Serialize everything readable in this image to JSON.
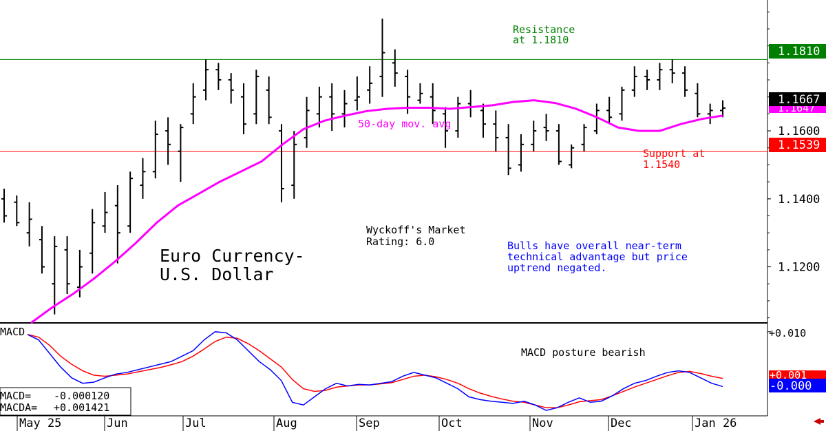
{
  "chart_data": {
    "type": "ohlc",
    "title_lines": [
      "Euro Currency-",
      "U.S. Dollar"
    ],
    "rating_lines": [
      "Wyckoff's Market",
      "Rating: 6.0"
    ],
    "commentary_lines": [
      "Bulls have overall near-term",
      "technical advantage but price",
      "uptrend negated."
    ],
    "moving_average_label": "50-day mov. avg",
    "resistance": {
      "value": 1.181,
      "label_lines": [
        "Resistance",
        "at 1.1810"
      ],
      "tag": "1.1810",
      "color": "#008000"
    },
    "support": {
      "value": 1.1539,
      "label_lines": [
        "Support at",
        "1.1540"
      ],
      "tag": "1.1539",
      "color": "#ff0000"
    },
    "last_price": {
      "value": 1.1667,
      "tag": "1.1667"
    },
    "ma_last": {
      "value": 1.1647,
      "tag": "1.1647"
    },
    "price_axis_ticks": [
      "1.1600",
      "1.1400",
      "1.1200"
    ],
    "price_axis_values": [
      1.16,
      1.14,
      1.12
    ],
    "ylim": [
      1.1035,
      1.1985
    ],
    "months": [
      "May 25",
      "Jun",
      "Jul",
      "Aug",
      "Sep",
      "Oct",
      "Nov",
      "Dec",
      "Jan 26"
    ],
    "macd": {
      "label": "MACD",
      "posture_label": "MACD posture bearish",
      "axis_tick": "+0.010",
      "ylim": [
        -0.0055,
        0.0115
      ],
      "macd_value_text": "-0.000120",
      "macda_value_text": "+0.001421",
      "macd_readout_label": "MACD=",
      "macda_readout_label": "MACDA=",
      "macd_tag": "-0.000",
      "macda_tag": "+0.001",
      "macd_values": [
        0.0095,
        0.0085,
        0.006,
        0.0035,
        0.0015,
        0.0005,
        0.0007,
        0.0015,
        0.0022,
        0.0025,
        0.003,
        0.0035,
        0.004,
        0.0045,
        0.0055,
        0.0065,
        0.0085,
        0.01,
        0.0098,
        0.0085,
        0.0065,
        0.0045,
        0.003,
        0.001,
        -0.003,
        -0.0035,
        -0.002,
        -0.0005,
        0.0005,
        0.0,
        0.0003,
        0.0002,
        0.0005,
        0.0008,
        0.0018,
        0.0025,
        0.002,
        0.0015,
        0.0005,
        -0.0005,
        -0.002,
        -0.0025,
        -0.0028,
        -0.003,
        -0.0032,
        -0.0028,
        -0.0035,
        -0.0045,
        -0.004,
        -0.003,
        -0.0022,
        -0.003,
        -0.0028,
        -0.0018,
        -0.0005,
        0.0005,
        0.001,
        0.0018,
        0.0025,
        0.0028,
        0.0025,
        0.0015,
        0.0005,
        -0.0001
      ],
      "macda_values": [
        0.0095,
        0.009,
        0.0075,
        0.0055,
        0.004,
        0.0028,
        0.002,
        0.0018,
        0.002,
        0.0022,
        0.0026,
        0.003,
        0.0034,
        0.0039,
        0.0045,
        0.0055,
        0.0068,
        0.0082,
        0.009,
        0.0088,
        0.0078,
        0.0065,
        0.005,
        0.0035,
        0.0012,
        -0.0005,
        -0.001,
        -0.0008,
        -0.0002,
        0.0,
        0.0002,
        0.0002,
        0.0004,
        0.0006,
        0.0012,
        0.0018,
        0.002,
        0.0017,
        0.0012,
        0.0005,
        -0.0005,
        -0.0013,
        -0.0019,
        -0.0024,
        -0.0028,
        -0.003,
        -0.0035,
        -0.004,
        -0.004,
        -0.0035,
        -0.0029,
        -0.0027,
        -0.0025,
        -0.0018,
        -0.001,
        -0.0002,
        0.0005,
        0.0012,
        0.0019,
        0.0025,
        0.0027,
        0.0023,
        0.0018,
        0.0014
      ]
    },
    "ma_values": [
      1.1035,
      1.108,
      1.112,
      1.1165,
      1.1215,
      1.127,
      1.133,
      1.138,
      1.1415,
      1.145,
      1.148,
      1.151,
      1.156,
      1.1605,
      1.163,
      1.1645,
      1.1658,
      1.1665,
      1.1668,
      1.1668,
      1.1665,
      1.167,
      1.1675,
      1.1685,
      1.169,
      1.1682,
      1.1665,
      1.164,
      1.161,
      1.16,
      1.16,
      1.162,
      1.1635,
      1.1645
    ],
    "ohlc": [
      [
        1.14,
        1.143,
        1.133,
        1.135
      ],
      [
        1.139,
        1.141,
        1.132,
        1.133
      ],
      [
        1.13,
        1.139,
        1.126,
        1.134
      ],
      [
        1.128,
        1.132,
        1.118,
        1.12
      ],
      [
        1.115,
        1.129,
        1.106,
        1.126
      ],
      [
        1.125,
        1.129,
        1.112,
        1.115
      ],
      [
        1.114,
        1.125,
        1.111,
        1.12
      ],
      [
        1.124,
        1.137,
        1.118,
        1.133
      ],
      [
        1.132,
        1.142,
        1.13,
        1.136
      ],
      [
        1.138,
        1.144,
        1.121,
        1.13
      ],
      [
        1.132,
        1.148,
        1.13,
        1.146
      ],
      [
        1.144,
        1.152,
        1.14,
        1.148
      ],
      [
        1.148,
        1.163,
        1.146,
        1.159
      ],
      [
        1.16,
        1.164,
        1.15,
        1.156
      ],
      [
        1.154,
        1.162,
        1.145,
        1.161
      ],
      [
        1.165,
        1.174,
        1.162,
        1.17
      ],
      [
        1.172,
        1.181,
        1.169,
        1.178
      ],
      [
        1.178,
        1.18,
        1.172,
        1.175
      ],
      [
        1.175,
        1.177,
        1.168,
        1.172
      ],
      [
        1.17,
        1.174,
        1.159,
        1.162
      ],
      [
        1.165,
        1.178,
        1.162,
        1.176
      ],
      [
        1.172,
        1.176,
        1.162,
        1.164
      ],
      [
        1.16,
        1.162,
        1.139,
        1.143
      ],
      [
        1.144,
        1.16,
        1.14,
        1.156
      ],
      [
        1.158,
        1.17,
        1.155,
        1.166
      ],
      [
        1.165,
        1.173,
        1.161,
        1.17
      ],
      [
        1.17,
        1.174,
        1.16,
        1.165
      ],
      [
        1.165,
        1.172,
        1.161,
        1.168
      ],
      [
        1.169,
        1.176,
        1.166,
        1.17
      ],
      [
        1.172,
        1.179,
        1.168,
        1.174
      ],
      [
        1.176,
        1.193,
        1.17,
        1.183
      ],
      [
        1.18,
        1.184,
        1.173,
        1.177
      ],
      [
        1.176,
        1.178,
        1.165,
        1.17
      ],
      [
        1.169,
        1.174,
        1.168,
        1.171
      ],
      [
        1.17,
        1.174,
        1.162,
        1.166
      ],
      [
        1.165,
        1.167,
        1.155,
        1.16
      ],
      [
        1.16,
        1.17,
        1.158,
        1.168
      ],
      [
        1.168,
        1.172,
        1.164,
        1.167
      ],
      [
        1.166,
        1.168,
        1.158,
        1.162
      ],
      [
        1.162,
        1.166,
        1.154,
        1.158
      ],
      [
        1.158,
        1.162,
        1.147,
        1.149
      ],
      [
        1.15,
        1.159,
        1.148,
        1.156
      ],
      [
        1.156,
        1.163,
        1.154,
        1.16
      ],
      [
        1.161,
        1.165,
        1.157,
        1.16
      ],
      [
        1.16,
        1.162,
        1.15,
        1.151
      ],
      [
        1.15,
        1.156,
        1.149,
        1.155
      ],
      [
        1.156,
        1.162,
        1.154,
        1.161
      ],
      [
        1.16,
        1.168,
        1.159,
        1.166
      ],
      [
        1.166,
        1.17,
        1.162,
        1.164
      ],
      [
        1.165,
        1.173,
        1.163,
        1.172
      ],
      [
        1.172,
        1.179,
        1.17,
        1.176
      ],
      [
        1.176,
        1.178,
        1.172,
        1.175
      ],
      [
        1.175,
        1.18,
        1.172,
        1.178
      ],
      [
        1.178,
        1.181,
        1.174,
        1.177
      ],
      [
        1.177,
        1.179,
        1.17,
        1.172
      ],
      [
        1.171,
        1.174,
        1.164,
        1.165
      ],
      [
        1.165,
        1.168,
        1.162,
        1.166
      ],
      [
        1.166,
        1.169,
        1.164,
        1.1667
      ]
    ]
  }
}
